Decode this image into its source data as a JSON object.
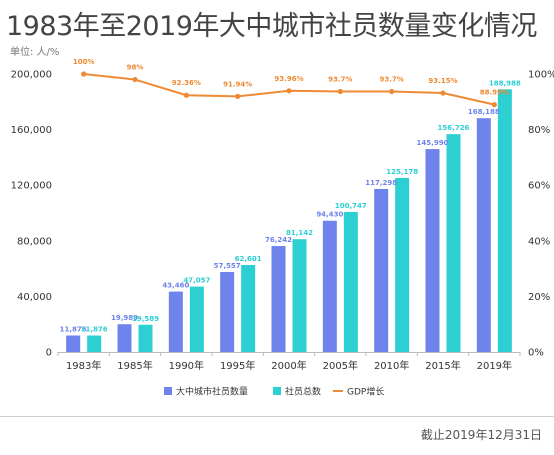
{
  "header": {
    "title": "1983年至2019年大中城市社员数量变化情况",
    "unit": "单位: 人/%"
  },
  "footer": {
    "note": "截止2019年12月31日"
  },
  "chart_data": {
    "type": "bar",
    "categories": [
      "1983年",
      "1985年",
      "1990年",
      "1995年",
      "2000年",
      "2005年",
      "2010年",
      "2015年",
      "2019年"
    ],
    "series": [
      {
        "name": "大中城市社员数量",
        "type": "bar",
        "axis": "left",
        "color": "#6e84ec",
        "values": [
          11876,
          19989,
          43460,
          57557,
          76242,
          94430,
          117298,
          145990,
          168188
        ],
        "labels": [
          "11,876",
          "19,989",
          "43,460",
          "57,557",
          "76,242",
          "94,430",
          "117,298",
          "145,990",
          "168,188"
        ]
      },
      {
        "name": "社员总数",
        "type": "bar",
        "axis": "left",
        "color": "#2ccfd2",
        "values": [
          11876,
          19589,
          47057,
          62601,
          81142,
          100747,
          125178,
          156726,
          188988
        ],
        "labels": [
          "11,876",
          "19,589",
          "47,057",
          "62,601",
          "81,142",
          "100,747",
          "125,178",
          "156,726",
          "188,988"
        ]
      },
      {
        "name": "GDP增长",
        "type": "line",
        "axis": "right",
        "color": "#ee8a33",
        "values": [
          100,
          98,
          92.36,
          91.94,
          93.96,
          93.7,
          93.7,
          93.15,
          88.99
        ],
        "labels": [
          "100%",
          "98%",
          "92.36%",
          "91.94%",
          "93.96%",
          "93.7%",
          "93.7%",
          "93.15%",
          "88.99%"
        ]
      }
    ],
    "y_left": {
      "min": 0,
      "max": 200000,
      "ticks": [
        "0",
        "40,000",
        "80,000",
        "120,000",
        "160,000",
        "200,000"
      ]
    },
    "y_right": {
      "min": 0,
      "max": 100,
      "ticks": [
        "0%",
        "20%",
        "40%",
        "60%",
        "80%",
        "100%"
      ]
    },
    "grid": false,
    "legend_position": "bottom"
  }
}
